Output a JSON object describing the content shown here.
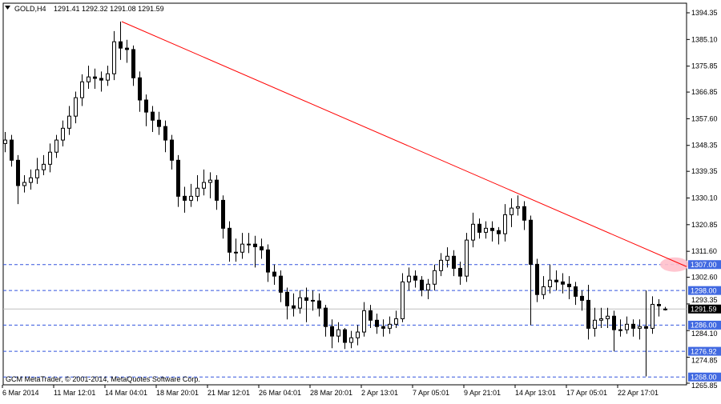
{
  "header": {
    "symbol": "GOLD,H4",
    "ohlc": "1291.41 1292.32 1291.08 1291.59",
    "menu_icon": "triangle-down-icon"
  },
  "copyright": "GCM MetaTrader, © 2001-2014, MetaQuotes Software Corp.",
  "colors": {
    "background": "#ffffff",
    "candle": "#000000",
    "trendline": "#ff0000",
    "level_line": "#3355dd",
    "level_label_bg": "#4169e1",
    "price_line": "#c0c0c0",
    "highlight": "#ffc0cb"
  },
  "chart_data": {
    "type": "candlestick",
    "symbol": "GOLD",
    "timeframe": "H4",
    "ylim": [
      1265.85,
      1394.35
    ],
    "price_ticks": [
      "1394.35",
      "1385.10",
      "1375.85",
      "1366.85",
      "1357.60",
      "1348.35",
      "1339.35",
      "1330.10",
      "1320.85",
      "1311.60",
      "1302.60",
      "1293.35",
      "1284.10",
      "1274.85",
      "1265.85"
    ],
    "date_ticks": [
      "6 Mar 2014",
      "11 Mar 12:01",
      "14 Mar 04:01",
      "18 Mar 20:01",
      "21 Mar 12:01",
      "26 Mar 04:01",
      "28 Mar 20:01",
      "2 Apr 13:01",
      "7 Apr 05:01",
      "9 Apr 21:01",
      "14 Apr 13:01",
      "17 Apr 05:01",
      "22 Apr 17:01"
    ],
    "candles_ohlc": [
      [
        1349.0,
        1353,
        1346,
        1350.2
      ],
      [
        1350.2,
        1352,
        1341,
        1343.2
      ],
      [
        1343.2,
        1345,
        1328,
        1334.4
      ],
      [
        1334.4,
        1338,
        1332,
        1335.5
      ],
      [
        1335.5,
        1340,
        1333,
        1337.1
      ],
      [
        1337.1,
        1344,
        1335,
        1339.9
      ],
      [
        1339.9,
        1345,
        1338,
        1341.8
      ],
      [
        1341.8,
        1349,
        1339,
        1346.0
      ],
      [
        1346.0,
        1352,
        1344,
        1350.2
      ],
      [
        1350.2,
        1357,
        1348,
        1354.3
      ],
      [
        1354.3,
        1362,
        1352,
        1358.5
      ],
      [
        1358.5,
        1367,
        1356,
        1364.9
      ],
      [
        1364.9,
        1373,
        1362,
        1370.4
      ],
      [
        1370.4,
        1376,
        1368,
        1372.1
      ],
      [
        1372.1,
        1375,
        1368,
        1371.6
      ],
      [
        1371.6,
        1374,
        1367,
        1371.0
      ],
      [
        1371.0,
        1376,
        1369,
        1373.2
      ],
      [
        1373.2,
        1388,
        1371,
        1384.3
      ],
      [
        1384.3,
        1391.3,
        1378,
        1382.1
      ],
      [
        1382.1,
        1385,
        1377,
        1381.6
      ],
      [
        1381.6,
        1383,
        1369,
        1371.8
      ],
      [
        1371.8,
        1374,
        1360,
        1364.1
      ],
      [
        1364.1,
        1366,
        1355,
        1359.9
      ],
      [
        1359.9,
        1362,
        1353,
        1357.1
      ],
      [
        1357.1,
        1360,
        1352,
        1354.9
      ],
      [
        1354.9,
        1357,
        1346,
        1350.2
      ],
      [
        1350.2,
        1352,
        1340,
        1343.2
      ],
      [
        1343.2,
        1345,
        1327,
        1330.7
      ],
      [
        1330.7,
        1334,
        1325,
        1329.3
      ],
      [
        1329.3,
        1335,
        1327,
        1330.7
      ],
      [
        1330.7,
        1338,
        1329,
        1333.5
      ],
      [
        1333.5,
        1340,
        1331,
        1335.5
      ],
      [
        1335.5,
        1339,
        1330,
        1336.3
      ],
      [
        1336.3,
        1338,
        1326,
        1329.3
      ],
      [
        1329.3,
        1331,
        1316,
        1319.6
      ],
      [
        1319.6,
        1322,
        1308,
        1311.3
      ],
      [
        1311.3,
        1316,
        1308,
        1311.3
      ],
      [
        1311.3,
        1318,
        1309,
        1314.1
      ],
      [
        1314.1,
        1318,
        1311,
        1314.1
      ],
      [
        1314.1,
        1317,
        1306,
        1313.2
      ],
      [
        1313.2,
        1316,
        1309,
        1312.1
      ],
      [
        1312.1,
        1314,
        1301,
        1304.4
      ],
      [
        1304.4,
        1307,
        1300,
        1303.0
      ],
      [
        1303.0,
        1305,
        1294,
        1297.4
      ],
      [
        1297.4,
        1299,
        1288,
        1292.7
      ],
      [
        1292.7,
        1297,
        1289,
        1291.9
      ],
      [
        1291.9,
        1298,
        1290,
        1295.5
      ],
      [
        1295.5,
        1299,
        1287,
        1294.6
      ],
      [
        1294.6,
        1298,
        1291,
        1294.4
      ],
      [
        1294.4,
        1297,
        1289,
        1291.9
      ],
      [
        1291.9,
        1293,
        1282,
        1285.5
      ],
      [
        1285.5,
        1288,
        1278,
        1282.2
      ],
      [
        1282.2,
        1287,
        1280,
        1284.4
      ],
      [
        1284.4,
        1285,
        1277.7,
        1280.0
      ],
      [
        1280.0,
        1284,
        1278,
        1281.6
      ],
      [
        1281.6,
        1286,
        1279,
        1283.6
      ],
      [
        1283.6,
        1294,
        1282,
        1291.0
      ],
      [
        1291.0,
        1293,
        1285,
        1287.7
      ],
      [
        1287.7,
        1290,
        1283,
        1285.5
      ],
      [
        1285.5,
        1288,
        1282,
        1284.9
      ],
      [
        1284.9,
        1289,
        1283,
        1286.3
      ],
      [
        1286.3,
        1291,
        1285,
        1288.2
      ],
      [
        1288.2,
        1304,
        1287,
        1301.0
      ],
      [
        1301.0,
        1306,
        1298,
        1303.0
      ],
      [
        1303.0,
        1305,
        1299,
        1301.6
      ],
      [
        1301.6,
        1303,
        1296,
        1298.2
      ],
      [
        1298.2,
        1302,
        1295,
        1300.2
      ],
      [
        1300.2,
        1307,
        1298,
        1304.9
      ],
      [
        1304.9,
        1311,
        1303,
        1308.5
      ],
      [
        1308.5,
        1313,
        1306,
        1309.9
      ],
      [
        1309.9,
        1312,
        1303,
        1305.7
      ],
      [
        1305.7,
        1308,
        1300,
        1303.0
      ],
      [
        1303.0,
        1318,
        1301,
        1315.5
      ],
      [
        1315.5,
        1325,
        1313,
        1321.0
      ],
      [
        1321.0,
        1323,
        1316,
        1318.2
      ],
      [
        1318.2,
        1322,
        1316,
        1319.6
      ],
      [
        1319.6,
        1322,
        1315,
        1318.8
      ],
      [
        1318.8,
        1320,
        1314,
        1317.7
      ],
      [
        1317.7,
        1328,
        1315,
        1324.3
      ],
      [
        1324.3,
        1330,
        1320,
        1326.6
      ],
      [
        1326.6,
        1331,
        1324,
        1327.1
      ],
      [
        1327.1,
        1329,
        1319,
        1322.4
      ],
      [
        1322.4,
        1324,
        1286,
        1307.1
      ],
      [
        1307.1,
        1309,
        1294,
        1296.6
      ],
      [
        1296.6,
        1303,
        1295,
        1299.3
      ],
      [
        1299.3,
        1307,
        1297,
        1301.6
      ],
      [
        1301.6,
        1305,
        1298,
        1301.0
      ],
      [
        1301.0,
        1304,
        1297,
        1300.2
      ],
      [
        1300.2,
        1303,
        1295,
        1299.3
      ],
      [
        1299.3,
        1301,
        1293,
        1296.0
      ],
      [
        1296.0,
        1298,
        1291,
        1294.6
      ],
      [
        1294.6,
        1300,
        1281,
        1284.9
      ],
      [
        1284.9,
        1292,
        1282,
        1287.7
      ],
      [
        1287.7,
        1292,
        1285,
        1288.2
      ],
      [
        1288.2,
        1292,
        1285,
        1289.1
      ],
      [
        1289.1,
        1291,
        1276.9,
        1284.4
      ],
      [
        1284.4,
        1288,
        1282,
        1284.4
      ],
      [
        1284.4,
        1289,
        1283,
        1286.3
      ],
      [
        1286.3,
        1288,
        1282,
        1284.9
      ],
      [
        1284.9,
        1288,
        1281,
        1285.5
      ],
      [
        1285.5,
        1298,
        1268.2,
        1284.9
      ],
      [
        1284.9,
        1296,
        1283,
        1293.2
      ],
      [
        1293.2,
        1295,
        1289,
        1292.7
      ],
      [
        1291.41,
        1292.32,
        1291.08,
        1291.59
      ]
    ],
    "trendline": {
      "from_price": 1391.3,
      "to_price": 1306.3,
      "color": "#ff0000"
    },
    "levels": [
      "1307.00",
      "1298.00",
      "1286.00",
      "1276.92",
      "1268.00"
    ],
    "current_price": "1291.59",
    "highlight_at": "1307.00"
  }
}
